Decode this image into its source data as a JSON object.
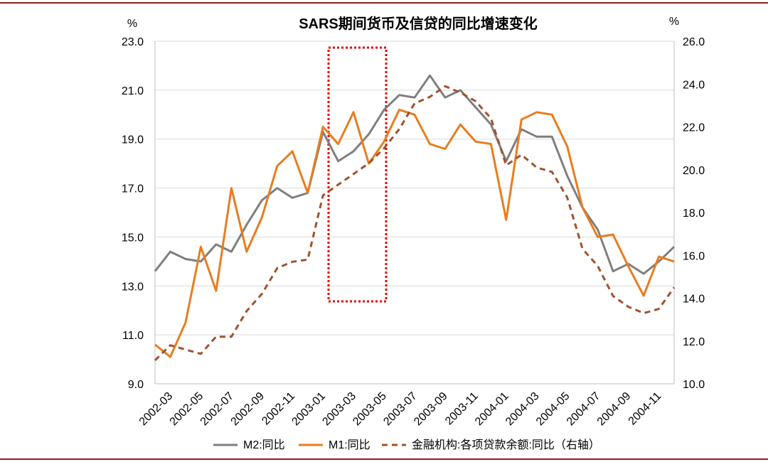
{
  "chart_data": {
    "type": "line",
    "title": "SARS期间货币及信贷的同比增速变化",
    "y_left_unit": "%",
    "y_right_unit": "%",
    "y_left_lim": [
      9.0,
      23.0
    ],
    "y_left_ticks": [
      "23.0",
      "21.0",
      "19.0",
      "17.0",
      "15.0",
      "13.0",
      "11.0",
      "9.0"
    ],
    "y_right_lim": [
      10.0,
      26.0
    ],
    "y_right_ticks": [
      "26.0",
      "24.0",
      "22.0",
      "20.0",
      "18.0",
      "16.0",
      "14.0",
      "12.0",
      "10.0"
    ],
    "x": [
      "2002-02",
      "2002-03",
      "2002-04",
      "2002-05",
      "2002-06",
      "2002-07",
      "2002-08",
      "2002-09",
      "2002-10",
      "2002-11",
      "2002-12",
      "2003-01",
      "2003-02",
      "2003-03",
      "2003-04",
      "2003-05",
      "2003-06",
      "2003-07",
      "2003-08",
      "2003-09",
      "2003-10",
      "2003-11",
      "2003-12",
      "2004-01",
      "2004-02",
      "2004-03",
      "2004-04",
      "2004-05",
      "2004-06",
      "2004-07",
      "2004-08",
      "2004-09",
      "2004-10",
      "2004-11",
      "2004-12"
    ],
    "x_tick_labels": [
      "2002-03",
      "2002-05",
      "2002-07",
      "2002-09",
      "2002-11",
      "2003-01",
      "2003-03",
      "2003-05",
      "2003-07",
      "2003-09",
      "2003-11",
      "2004-01",
      "2004-03",
      "2004-05",
      "2004-07",
      "2004-09",
      "2004-11"
    ],
    "series": [
      {
        "name": "M2:同比",
        "axis": "left",
        "color": "#7f7f7f",
        "dash": "solid",
        "values": [
          13.6,
          14.4,
          14.1,
          14.0,
          14.7,
          14.4,
          15.5,
          16.5,
          17.0,
          16.6,
          16.8,
          19.3,
          18.1,
          18.5,
          19.2,
          20.2,
          20.8,
          20.7,
          21.6,
          20.7,
          21.0,
          20.3,
          19.6,
          18.1,
          19.4,
          19.1,
          19.1,
          17.5,
          16.2,
          15.3,
          13.6,
          13.9,
          13.5,
          14.0,
          14.6
        ]
      },
      {
        "name": "M1:同比",
        "axis": "left",
        "color": "#e87d1e",
        "dash": "solid",
        "values": [
          10.6,
          10.1,
          11.5,
          14.6,
          12.8,
          17.0,
          14.4,
          15.8,
          17.9,
          18.5,
          16.8,
          19.5,
          18.8,
          20.1,
          18.0,
          18.9,
          20.2,
          20.0,
          18.8,
          18.6,
          19.6,
          18.9,
          18.8,
          15.7,
          19.8,
          20.1,
          20.0,
          18.7,
          16.2,
          15.0,
          15.1,
          13.8,
          12.6,
          14.2,
          14.0
        ]
      },
      {
        "name": "金融机构:各项贷款余额:同比（右轴）",
        "axis": "right",
        "color": "#a0522d",
        "dash": "dashed",
        "values": [
          11.1,
          11.8,
          11.6,
          11.4,
          12.2,
          12.2,
          13.4,
          14.2,
          15.4,
          15.7,
          15.8,
          18.8,
          19.3,
          19.8,
          20.3,
          21.0,
          21.9,
          23.1,
          23.4,
          23.9,
          23.6,
          23.2,
          22.4,
          20.2,
          20.7,
          20.1,
          19.9,
          18.7,
          16.3,
          15.5,
          14.1,
          13.6,
          13.3,
          13.5,
          14.5
        ]
      }
    ],
    "grid": true,
    "legend_position": "bottom"
  }
}
